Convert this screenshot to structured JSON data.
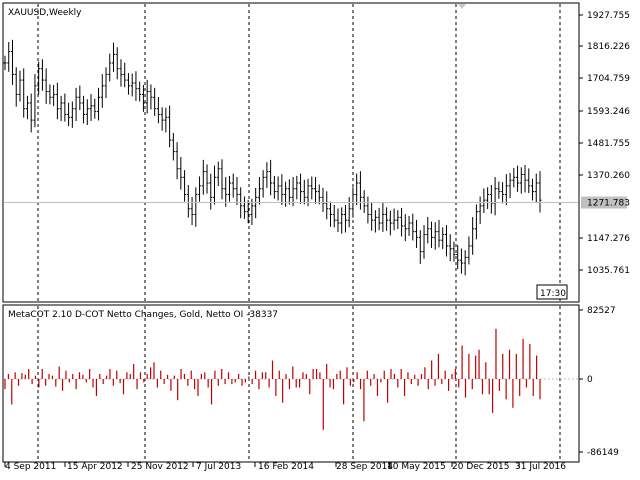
{
  "chart_data": [
    {
      "type": "ohlc",
      "title": "XAUUSD,Weekly",
      "y_ticks": [
        "1927.755",
        "1816.226",
        "1704.759",
        "1593.246",
        "1481.755",
        "1370.260",
        "1147.276",
        "1035.761"
      ],
      "ylim": [
        1000,
        1950
      ],
      "current_price": "1271.783",
      "current_price_value": 1271.78,
      "time_box": "17:30",
      "grid": "vertical dashed",
      "series": [
        {
          "name": "XAUUSD",
          "values": [
            1760,
            1800,
            1720,
            1650,
            1700,
            1600,
            1620,
            1560,
            1680,
            1740,
            1700,
            1660,
            1640,
            1650,
            1600,
            1620,
            1580,
            1570,
            1600,
            1640,
            1620,
            1580,
            1600,
            1610,
            1590,
            1640,
            1680,
            1720,
            1760,
            1790,
            1740,
            1720,
            1700,
            1680,
            1690,
            1670,
            1650,
            1620,
            1660,
            1640,
            1600,
            1580,
            1560,
            1570,
            1490,
            1450,
            1390,
            1360,
            1300,
            1250,
            1230,
            1300,
            1330,
            1380,
            1340,
            1290,
            1360,
            1390,
            1320,
            1300,
            1340,
            1320,
            1300,
            1260,
            1240,
            1230,
            1260,
            1290,
            1320,
            1360,
            1380,
            1340,
            1310,
            1330,
            1300,
            1320,
            1290,
            1320,
            1340,
            1310,
            1290,
            1330,
            1320,
            1310,
            1290,
            1270,
            1250,
            1230,
            1210,
            1200,
            1230,
            1210,
            1250,
            1300,
            1340,
            1290,
            1260,
            1230,
            1210,
            1220,
            1200,
            1230,
            1210,
            1200,
            1210,
            1220,
            1190,
            1180,
            1200,
            1170,
            1150,
            1100,
            1160,
            1180,
            1150,
            1170,
            1140,
            1160,
            1120,
            1110,
            1090,
            1070,
            1060,
            1080,
            1120,
            1180,
            1240,
            1260,
            1280,
            1300,
            1270,
            1320,
            1310,
            1300,
            1330,
            1350,
            1360,
            1340,
            1370,
            1350,
            1330,
            1310,
            1340,
            1280
          ]
        }
      ]
    },
    {
      "type": "bar",
      "title": "MetaCOT 2.10 D-COT Netto Changes, Gold, Netto OI -38337",
      "y_ticks": [
        "82527",
        "0",
        "-86149"
      ],
      "ylim": [
        -86149,
        82527
      ],
      "x_tick_labels": [
        "4 Sep 2011",
        "15 Apr 2012",
        "25 Nov 2012",
        "7 Jul 2013",
        "16 Feb 2014",
        "28 Sep 2014",
        "10 May 2015",
        "20 Dec 2015",
        "31 Jul 2016"
      ],
      "bar_color": "#c00000",
      "series": [
        {
          "name": "Netto Changes",
          "values": [
            -12000,
            6000,
            -30000,
            8000,
            -8000,
            7000,
            5000,
            12000,
            -6000,
            4000,
            -10000,
            12000,
            -8000,
            6000,
            4000,
            -9000,
            15000,
            -14000,
            10000,
            -4000,
            6000,
            -12000,
            8000,
            5000,
            -4000,
            12000,
            -10000,
            -20000,
            6000,
            -6000,
            4000,
            12000,
            -8000,
            10000,
            -5000,
            -18000,
            8000,
            6000,
            18000,
            -12000,
            8000,
            -4000,
            6000,
            14000,
            20000,
            -10000,
            10000,
            -6000,
            5000,
            -14000,
            4000,
            -25000,
            12000,
            6000,
            -8000,
            10000,
            -12000,
            -20000,
            6000,
            8000,
            -10000,
            -30000,
            10000,
            -8000,
            12000,
            -6000,
            8000,
            -6000,
            -4000,
            6000,
            -8000,
            -4000,
            3000,
            -6000,
            10000,
            -12000,
            8000,
            8000,
            -10000,
            22000,
            -20000,
            10000,
            -28000,
            6000,
            -12000,
            15000,
            -10000,
            -10000,
            8000,
            6000,
            -18000,
            12000,
            12000,
            8000,
            -60000,
            18000,
            -10000,
            -12000,
            6000,
            10000,
            -30000,
            14000,
            -8000,
            -4000,
            8000,
            -12000,
            -50000,
            10000,
            -8000,
            6000,
            -20000,
            -4000,
            10000,
            -28000,
            12000,
            6000,
            -10000,
            12000,
            -20000,
            8000,
            -6000,
            5000,
            -8000,
            6000,
            14000,
            -12000,
            22000,
            -8000,
            30000,
            -6000,
            10000,
            -14000,
            6000,
            12000,
            -10000,
            40000,
            -22000,
            30000,
            -12000,
            28000,
            35000,
            -18000,
            20000,
            -18000,
            -40000,
            60000,
            -14000,
            30000,
            -24000,
            35000,
            -34000,
            30000,
            -20000,
            48000,
            -10000,
            42000,
            -20000,
            28000,
            -24000
          ]
        }
      ]
    }
  ]
}
